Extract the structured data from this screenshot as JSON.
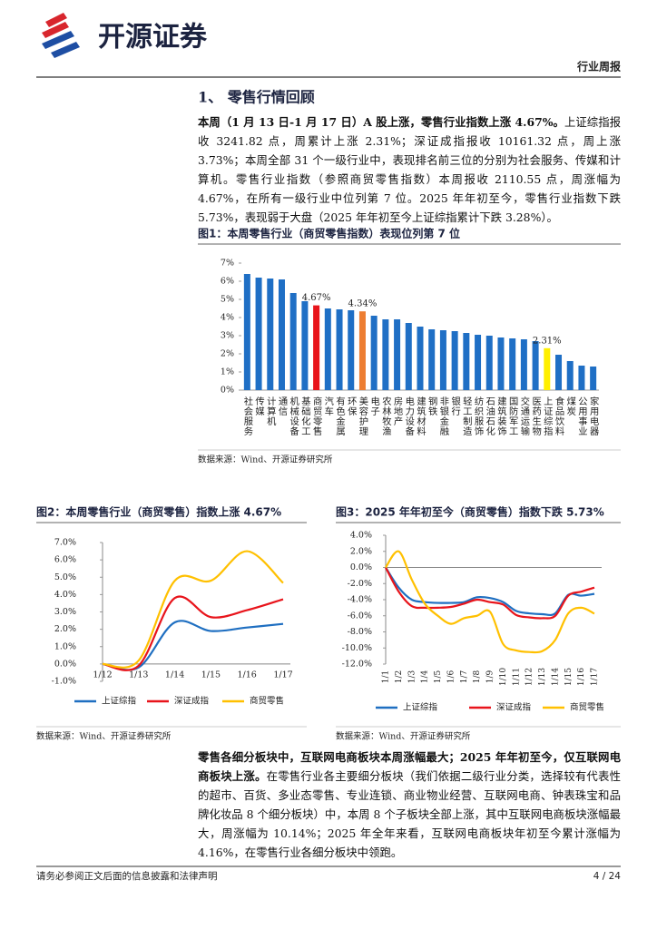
{
  "header": {
    "brand": "开源证券",
    "report_type": "行业周报"
  },
  "section_title": "1、 零售行情回顾",
  "paragraphs": [
    {
      "lead": "本周（1 月 13 日-1 月 17 日）A 股上涨，零售行业指数上涨 4.67%。",
      "body": "上证综指报收 3241.82 点，周累计上涨 2.31%；深证成指报收 10161.32 点，周上涨 3.73%；本周全部 31 个一级行业中，表现排名前三位的分别为社会服务、传媒和计算机。零售行业指数（参照商贸零售指数）本周报收 2110.55 点，周涨幅为 4.67%，在所有一级行业中位列第 7 位。2025 年年初至今，零售行业指数下跌 5.73%，表现弱于大盘（2025 年年初至今上证综指累计下跌 3.28%）。"
    },
    {
      "lead": "零售各细分板块中，互联网电商板块本周涨幅最大；2025 年年初至今，仅互联网电商板块上涨。",
      "body": "在零售行业各主要细分板块（我们依据二级行业分类，选择较有代表性的超市、百货、多业态零售、专业连锁、商业物业经营、互联网电商、钟表珠宝和品牌化妆品 8 个细分板块）中，本周 8 个子板块全部上涨，其中互联网电商板块涨幅最大，周涨幅为 10.14%；2025 年全年来看，互联网电商板块年初至今累计涨幅为 4.16%，在零售行业各细分板块中领跑。"
    }
  ],
  "chart_data": [
    {
      "type": "bar",
      "title": "图1：本周零售行业（商贸零售指数）表现位列第 7 位",
      "source": "数据来源：Wind、开源证券研究所",
      "categories": [
        "社会服务",
        "传媒",
        "计算机",
        "通信",
        "机械设备",
        "基础化工",
        "商贸零售",
        "汽车",
        "有色金属",
        "环保",
        "美容护理",
        "电子",
        "农林牧渔",
        "房地产",
        "电力设备",
        "建筑材料",
        "钢铁",
        "非银金融",
        "银行",
        "轻工制造",
        "纺织服饰",
        "石油石化",
        "建筑装饰",
        "国防军工",
        "交通运输",
        "医药生物",
        "上证综指",
        "食品饮料",
        "煤炭",
        "公用事业",
        "家用电器"
      ],
      "values": [
        6.4,
        6.2,
        6.15,
        6.1,
        5.35,
        4.9,
        4.67,
        4.5,
        4.45,
        4.4,
        4.34,
        4.1,
        3.9,
        3.9,
        3.7,
        3.5,
        3.35,
        3.3,
        3.25,
        3.15,
        3.05,
        3.0,
        2.9,
        2.85,
        2.8,
        2.7,
        2.31,
        1.95,
        1.6,
        1.35,
        1.3
      ],
      "value_labels": [
        null,
        null,
        null,
        null,
        null,
        null,
        "4.67%",
        null,
        null,
        null,
        "4.34%",
        null,
        null,
        null,
        null,
        null,
        null,
        null,
        null,
        null,
        null,
        null,
        null,
        null,
        null,
        null,
        "2.31%",
        null,
        null,
        null,
        null
      ],
      "colors": [
        "#1f6fc5",
        "#1f6fc5",
        "#1f6fc5",
        "#1f6fc5",
        "#1f6fc5",
        "#1f6fc5",
        "#e8141b",
        "#1f6fc5",
        "#1f6fc5",
        "#1f6fc5",
        "#ed7d31",
        "#1f6fc5",
        "#1f6fc5",
        "#1f6fc5",
        "#1f6fc5",
        "#1f6fc5",
        "#1f6fc5",
        "#1f6fc5",
        "#1f6fc5",
        "#1f6fc5",
        "#1f6fc5",
        "#1f6fc5",
        "#1f6fc5",
        "#1f6fc5",
        "#1f6fc5",
        "#1f6fc5",
        "#ffef00",
        "#1f6fc5",
        "#1f6fc5",
        "#1f6fc5",
        "#1f6fc5"
      ],
      "ylim": [
        0,
        7
      ],
      "yticks": [
        {
          "value": 0,
          "label": "0%"
        },
        {
          "value": 1,
          "label": "1%"
        },
        {
          "value": 2,
          "label": "2%"
        },
        {
          "value": 3,
          "label": "3%"
        },
        {
          "value": 4,
          "label": "4%"
        },
        {
          "value": 5,
          "label": "5%"
        },
        {
          "value": 6,
          "label": "6%"
        },
        {
          "value": 7,
          "label": "7%"
        }
      ]
    },
    {
      "type": "line",
      "title": "图2：本周零售行业（商贸零售）指数上涨 4.67%",
      "source": "数据来源：Wind、开源证券研究所",
      "categories": [
        "1/12",
        "1/13",
        "1/14",
        "1/15",
        "1/16",
        "1/17"
      ],
      "series": [
        {
          "name": "上证综指",
          "color": "#1f6fc1",
          "values": [
            0,
            -0.2,
            2.4,
            1.9,
            2.1,
            2.31
          ]
        },
        {
          "name": "深证成指",
          "color": "#e8141b",
          "values": [
            0,
            -0.1,
            3.8,
            2.7,
            3.1,
            3.73
          ]
        },
        {
          "name": "商贸零售",
          "color": "#ffc000",
          "values": [
            0,
            0.2,
            4.8,
            4.8,
            6.5,
            4.67
          ]
        }
      ],
      "ylim": [
        -1,
        7
      ],
      "yticks": [
        {
          "value": -1,
          "label": "-1.0%"
        },
        {
          "value": 0,
          "label": "0.0%"
        },
        {
          "value": 1,
          "label": "1.0%"
        },
        {
          "value": 2,
          "label": "2.0%"
        },
        {
          "value": 3,
          "label": "3.0%"
        },
        {
          "value": 4,
          "label": "4.0%"
        },
        {
          "value": 5,
          "label": "5.0%"
        },
        {
          "value": 6,
          "label": "6.0%"
        },
        {
          "value": 7,
          "label": "7.0%"
        }
      ]
    },
    {
      "type": "line",
      "title": "图3：2025 年年初至今（商贸零售）指数下跌 5.73%",
      "source": "数据来源：Wind、开源证券研究所",
      "categories": [
        "1/1",
        "1/2",
        "1/3",
        "1/4",
        "1/5",
        "1/6",
        "1/7",
        "1/8",
        "1/9",
        "1/10",
        "1/11",
        "1/12",
        "1/13",
        "1/14",
        "1/15",
        "1/16",
        "1/17"
      ],
      "series": [
        {
          "name": "上证综指",
          "color": "#1f6fc1",
          "values": [
            0,
            -2.5,
            -4.0,
            -4.3,
            -4.4,
            -4.4,
            -4.3,
            -3.7,
            -3.8,
            -4.3,
            -5.4,
            -5.7,
            -5.8,
            -5.7,
            -3.4,
            -3.5,
            -3.28
          ]
        },
        {
          "name": "深证成指",
          "color": "#e8141b",
          "values": [
            0,
            -3.0,
            -4.8,
            -5.0,
            -5.0,
            -4.9,
            -4.5,
            -4.0,
            -4.3,
            -4.6,
            -5.9,
            -6.2,
            -6.3,
            -6.0,
            -3.5,
            -3.0,
            -2.5
          ]
        },
        {
          "name": "商贸零售",
          "color": "#ffc000",
          "values": [
            0,
            2.0,
            -1.5,
            -4.5,
            -6.0,
            -7.0,
            -6.3,
            -6.0,
            -5.5,
            -9.5,
            -10.3,
            -10.5,
            -10.4,
            -9.0,
            -5.7,
            -5.0,
            -5.73
          ]
        }
      ],
      "ylim": [
        -12,
        4
      ],
      "yticks": [
        {
          "value": -12,
          "label": "-12.0%"
        },
        {
          "value": -10,
          "label": "-10.0%"
        },
        {
          "value": -8,
          "label": "-8.0%"
        },
        {
          "value": -6,
          "label": "-6.0%"
        },
        {
          "value": -4,
          "label": "-4.0%"
        },
        {
          "value": -2,
          "label": "-2.0%"
        },
        {
          "value": 0,
          "label": "0.0%"
        },
        {
          "value": 2,
          "label": "2.0%"
        },
        {
          "value": 4,
          "label": "4.0%"
        }
      ]
    }
  ],
  "footer": {
    "disclaimer": "请务必参阅正文后面的信息披露和法律声明",
    "page": "4 / 24"
  }
}
